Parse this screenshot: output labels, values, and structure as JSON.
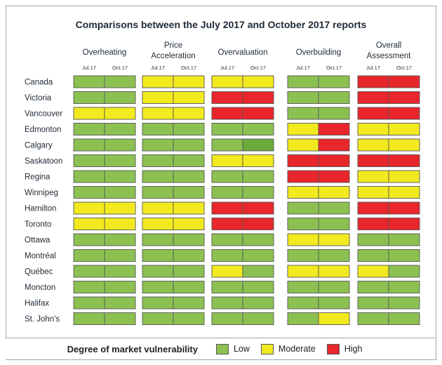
{
  "chart_data": {
    "type": "heatmap",
    "title": "Comparisons between the July 2017 and October 2017 reports",
    "groups": [
      {
        "line1": "Overheating",
        "line2": ""
      },
      {
        "line1": "Price",
        "line2": "Acceleration"
      },
      {
        "line1": "Overvaluation",
        "line2": ""
      },
      {
        "line1": "Overbuilding",
        "line2": ""
      },
      {
        "line1": "Overall",
        "line2": "Assessment"
      }
    ],
    "periods": [
      "Jul.17",
      "Oct.17"
    ],
    "rows": [
      "Canada",
      "Victoria",
      "Vancouver",
      "Edmonton",
      "Calgary",
      "Saskatoon",
      "Regina",
      "Winnipeg",
      "Hamilton",
      "Toronto",
      "Ottawa",
      "Montréal",
      "Québec",
      "Moncton",
      "Halifax",
      "St. John's"
    ],
    "levels": [
      "Low",
      "Moderate",
      "High"
    ],
    "level_colors": {
      "Low": "#8cc152",
      "Moderate": "#f2ea1f",
      "High": "#e8262b",
      "Low_dark": "#6aab3a"
    },
    "values": [
      [
        "Low",
        "Low",
        "Moderate",
        "Moderate",
        "Moderate",
        "Moderate",
        "Low",
        "Low",
        "High",
        "High"
      ],
      [
        "Low",
        "Low",
        "Moderate",
        "Moderate",
        "High",
        "High",
        "Low",
        "Low",
        "High",
        "High"
      ],
      [
        "Moderate",
        "Moderate",
        "Moderate",
        "Moderate",
        "High",
        "High",
        "Low",
        "Low",
        "High",
        "High"
      ],
      [
        "Low",
        "Low",
        "Low",
        "Low",
        "Low",
        "Low",
        "Moderate",
        "High",
        "Moderate",
        "Moderate"
      ],
      [
        "Low",
        "Low",
        "Low",
        "Low",
        "Low",
        "Low_dark",
        "Moderate",
        "High",
        "Moderate",
        "Moderate"
      ],
      [
        "Low",
        "Low",
        "Low",
        "Low",
        "Moderate",
        "Moderate",
        "High",
        "High",
        "High",
        "High"
      ],
      [
        "Low",
        "Low",
        "Low",
        "Low",
        "Low",
        "Low",
        "High",
        "High",
        "Moderate",
        "Moderate"
      ],
      [
        "Low",
        "Low",
        "Low",
        "Low",
        "Low",
        "Low",
        "Moderate",
        "Moderate",
        "Moderate",
        "Moderate"
      ],
      [
        "Moderate",
        "Moderate",
        "Moderate",
        "Moderate",
        "High",
        "High",
        "Low",
        "Low",
        "High",
        "High"
      ],
      [
        "Moderate",
        "Moderate",
        "Moderate",
        "Moderate",
        "High",
        "High",
        "Low",
        "Low",
        "High",
        "High"
      ],
      [
        "Low",
        "Low",
        "Low",
        "Low",
        "Low",
        "Low",
        "Moderate",
        "Moderate",
        "Low",
        "Low"
      ],
      [
        "Low",
        "Low",
        "Low",
        "Low",
        "Low",
        "Low",
        "Low",
        "Low",
        "Low",
        "Low"
      ],
      [
        "Low",
        "Low",
        "Low",
        "Low",
        "Moderate",
        "Low",
        "Moderate",
        "Moderate",
        "Moderate",
        "Low"
      ],
      [
        "Low",
        "Low",
        "Low",
        "Low",
        "Low",
        "Low",
        "Low",
        "Low",
        "Low",
        "Low"
      ],
      [
        "Low",
        "Low",
        "Low",
        "Low",
        "Low",
        "Low",
        "Low",
        "Low",
        "Low",
        "Low"
      ],
      [
        "Low",
        "Low",
        "Low",
        "Low",
        "Low",
        "Low",
        "Low",
        "Moderate",
        "Low",
        "Low"
      ]
    ],
    "legend_title": "Degree of market vulnerability"
  }
}
